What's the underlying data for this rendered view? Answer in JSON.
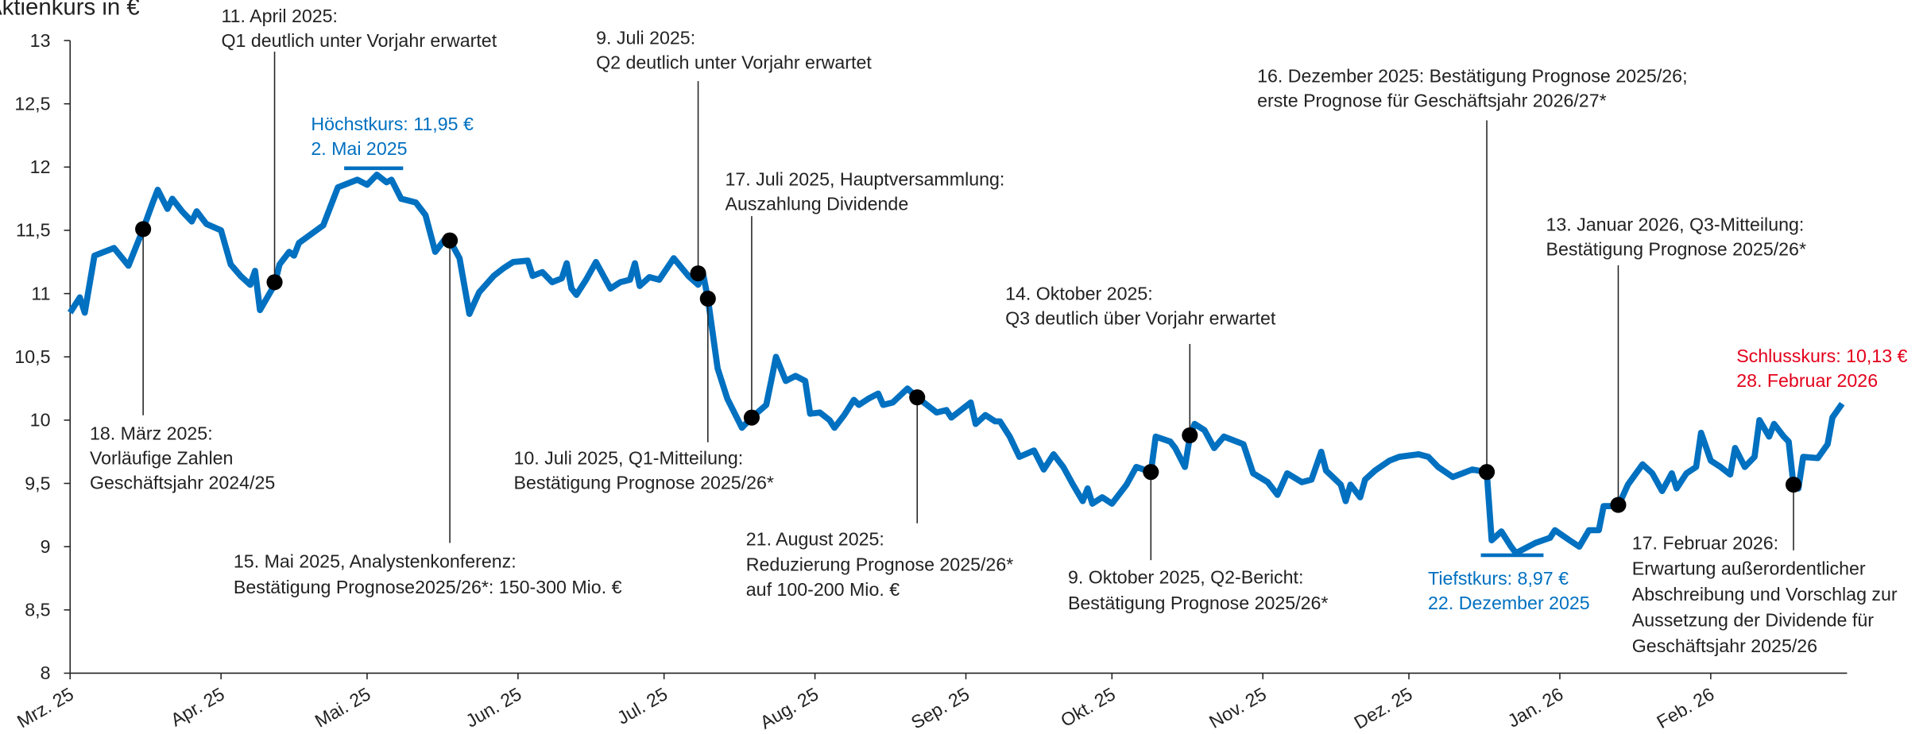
{
  "chart_data": {
    "type": "line",
    "y_label": "Aktienkurs in €",
    "color": "#0070C0",
    "x": [
      0,
      2,
      3,
      5,
      9,
      12,
      15,
      17,
      18,
      20,
      21,
      23,
      25,
      26,
      28,
      31,
      33,
      35,
      37,
      38,
      39,
      42,
      43,
      45,
      46,
      47,
      52,
      55,
      59,
      61,
      63,
      65,
      66,
      68,
      71,
      73,
      75,
      77,
      78,
      80,
      82,
      84,
      87,
      89,
      91,
      94,
      95,
      97,
      99,
      101,
      102,
      103,
      104,
      106,
      108,
      111,
      113,
      115,
      116,
      117,
      119,
      121,
      124,
      127,
      129,
      130,
      131,
      133,
      135,
      138,
      140,
      143,
      144,
      145,
      147,
      149,
      151,
      152,
      154,
      156,
      157,
      159,
      161,
      162,
      164,
      166,
      167,
      169,
      172,
      174,
      176,
      178,
      180,
      181,
      183,
      185,
      186,
      188,
      190,
      191,
      193,
      195,
      198,
      200,
      202,
      204,
      206,
      208,
      209,
      210,
      212,
      214,
      217,
      219,
      222,
      223,
      226,
      227,
      229,
      230,
      231,
      233,
      235,
      237,
      239,
      241,
      243,
      246,
      248,
      250,
      253,
      255,
      257,
      258,
      261,
      262,
      263,
      265,
      266,
      268,
      271,
      273,
      277,
      279,
      281,
      284,
      286,
      288,
      291,
      292,
      294,
      296,
      297,
      301,
      304,
      305,
      308,
      310,
      312,
      314,
      315,
      318,
      320,
      323,
      325,
      327,
      329,
      330,
      332,
      334,
      335,
      337,
      339,
      341,
      342,
      344,
      346,
      347,
      349,
      350,
      352,
      353,
      354,
      355,
      356,
      359,
      361,
      362,
      364
    ],
    "values": [
      10.85,
      10.97,
      10.85,
      11.3,
      11.36,
      11.22,
      11.51,
      11.72,
      11.82,
      11.67,
      11.75,
      11.65,
      11.57,
      11.65,
      11.55,
      11.5,
      11.23,
      11.14,
      11.07,
      11.18,
      10.87,
      11.07,
      11.23,
      11.33,
      11.3,
      11.4,
      11.54,
      11.84,
      11.9,
      11.86,
      11.94,
      11.88,
      11.9,
      11.75,
      11.72,
      11.62,
      11.33,
      11.43,
      11.42,
      11.28,
      10.84,
      11.01,
      11.14,
      11.2,
      11.25,
      11.26,
      11.14,
      11.17,
      11.09,
      11.12,
      11.24,
      11.04,
      10.99,
      11.11,
      11.25,
      11.04,
      11.09,
      11.11,
      11.24,
      11.06,
      11.13,
      11.11,
      11.28,
      11.14,
      11.07,
      11.16,
      10.96,
      10.41,
      10.17,
      9.94,
      10.02,
      10.12,
      10.31,
      10.5,
      10.31,
      10.35,
      10.31,
      10.05,
      10.06,
      10.0,
      9.94,
      10.04,
      10.16,
      10.12,
      10.17,
      10.21,
      10.12,
      10.14,
      10.25,
      10.18,
      10.12,
      10.06,
      10.08,
      10.02,
      10.08,
      10.14,
      9.97,
      10.04,
      9.99,
      9.99,
      9.87,
      9.71,
      9.76,
      9.61,
      9.73,
      9.63,
      9.49,
      9.36,
      9.46,
      9.34,
      9.39,
      9.34,
      9.49,
      9.63,
      9.59,
      9.87,
      9.83,
      9.78,
      9.63,
      9.87,
      9.97,
      9.92,
      9.78,
      9.87,
      9.84,
      9.81,
      9.58,
      9.51,
      9.41,
      9.58,
      9.51,
      9.53,
      9.75,
      9.6,
      9.49,
      9.36,
      9.49,
      9.39,
      9.53,
      9.6,
      9.68,
      9.71,
      9.73,
      9.71,
      9.63,
      9.55,
      9.58,
      9.61,
      9.59,
      9.05,
      9.12,
      9.0,
      8.95,
      9.03,
      9.07,
      9.13,
      9.05,
      9.0,
      9.13,
      9.13,
      9.32,
      9.32,
      9.49,
      9.65,
      9.58,
      9.44,
      9.58,
      9.46,
      9.58,
      9.63,
      9.9,
      9.68,
      9.63,
      9.57,
      9.78,
      9.63,
      9.71,
      10.0,
      9.87,
      9.97,
      9.87,
      9.83,
      9.49,
      9.46,
      9.71,
      9.7,
      9.81,
      10.02,
      10.13
    ],
    "xlim": [
      0,
      365
    ],
    "xticks": [
      {
        "value": 0,
        "label": "Mrz. 25"
      },
      {
        "value": 31,
        "label": "Apr. 25"
      },
      {
        "value": 61,
        "label": "Mai. 25"
      },
      {
        "value": 92,
        "label": "Jun. 25"
      },
      {
        "value": 122,
        "label": "Jul. 25"
      },
      {
        "value": 153,
        "label": "Aug. 25"
      },
      {
        "value": 184,
        "label": "Sep. 25"
      },
      {
        "value": 214,
        "label": "Okt. 25"
      },
      {
        "value": 245,
        "label": "Nov. 25"
      },
      {
        "value": 275,
        "label": "Dez. 25"
      },
      {
        "value": 306,
        "label": "Jan. 26"
      },
      {
        "value": 337,
        "label": "Feb. 26"
      }
    ],
    "ylim": [
      8,
      13
    ],
    "yticks": [
      8,
      {
        "value": 8.5,
        "label": "8,5"
      },
      9,
      {
        "value": 9.5,
        "label": "9,5"
      },
      10,
      {
        "value": 10.5,
        "label": "10,5"
      },
      11,
      {
        "value": 11.5,
        "label": "11,5"
      },
      12,
      {
        "value": 12.5,
        "label": "12,5"
      },
      13
    ],
    "annotations": [
      {
        "x": 15,
        "value": 11.51,
        "lines": [
          "18. März 2025:",
          "Vorläufige Zahlen",
          "Geschäftsjahr 2024/25"
        ]
      },
      {
        "x": 42,
        "value": 11.09,
        "lines": [
          "11. April 2025:",
          "Q1 deutlich unter Vorjahr erwartet"
        ]
      },
      {
        "x": 78,
        "value": 11.42,
        "lines": [
          "15. Mai 2025, Analystenkonferenz:",
          "Bestätigung Prognose2025/26*: 150-300 Mio. €"
        ]
      },
      {
        "x": 129,
        "value": 11.16,
        "lines": [
          "9. Juli 2025:",
          "Q2 deutlich unter Vorjahr erwartet"
        ]
      },
      {
        "x": 131,
        "value": 10.96,
        "lines": [
          "10. Juli 2025, Q1-Mitteilung:",
          "Bestätigung Prognose 2025/26*"
        ]
      },
      {
        "x": 140,
        "value": 10.02,
        "lines": [
          "17. Juli 2025, Hauptversammlung:",
          "Auszahlung Dividende"
        ]
      },
      {
        "x": 174,
        "value": 10.18,
        "lines": [
          "21. August 2025:",
          "Reduzierung Prognose 2025/26*",
          "auf 100-200 Mio. €"
        ]
      },
      {
        "x": 222,
        "value": 9.59,
        "lines": [
          "9. Oktober 2025, Q2-Bericht:",
          "Bestätigung Prognose 2025/26*"
        ]
      },
      {
        "x": 230,
        "value": 9.88,
        "lines": [
          "14. Oktober 2025:",
          "Q3 deutlich über Vorjahr erwartet"
        ]
      },
      {
        "x": 291,
        "value": 9.59,
        "lines": [
          "16. Dezember 2025: Bestätigung Prognose 2025/26;",
          "erste Prognose für Geschäftsjahr 2026/27*"
        ]
      },
      {
        "x": 318,
        "value": 9.33,
        "lines": [
          "13. Januar 2026, Q3-Mitteilung:",
          "Bestätigung Prognose 2025/26*"
        ]
      },
      {
        "x": 354,
        "value": 9.49,
        "lines": [
          "17. Februar 2026:",
          "Erwartung außerordentlicher",
          "Abschreibung und Vorschlag zur",
          "Aussetzung der Dividende für",
          "Geschäftsjahr 2025/26"
        ]
      }
    ],
    "callouts": [
      {
        "lines": [
          "Höchstkurs: 11,95 €",
          "2. Mai 2025"
        ],
        "color": "#0070C0"
      },
      {
        "lines": [
          "Tiefstkurs: 8,97 €",
          "22. Dezember 2025"
        ],
        "color": "#0070C0"
      },
      {
        "lines": [
          "Schlusskurs: 10,13 €",
          "28. Februar 2026"
        ],
        "color": "#E3001B"
      }
    ]
  }
}
